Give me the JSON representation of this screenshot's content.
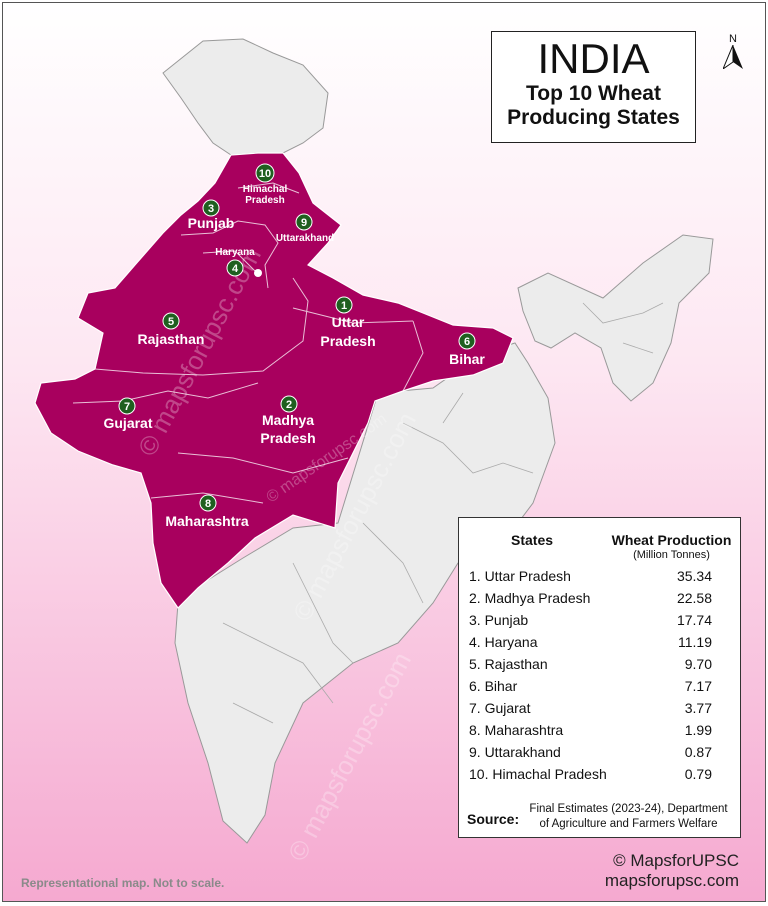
{
  "title": "INDIA",
  "subtitle_line1": "Top 10 Wheat",
  "subtitle_line2": "Producing States",
  "north_label": "N",
  "legend": {
    "header_states": "States",
    "header_production": "Wheat Production",
    "header_unit": "(Million Tonnes)",
    "rows": [
      {
        "label": "1. Uttar Pradesh",
        "value": "35.34"
      },
      {
        "label": "2. Madhya Pradesh",
        "value": "22.58"
      },
      {
        "label": "3. Punjab",
        "value": "17.74"
      },
      {
        "label": "4. Haryana",
        "value": "11.19"
      },
      {
        "label": "5. Rajasthan",
        "value": "9.70"
      },
      {
        "label": "6. Bihar",
        "value": "7.17"
      },
      {
        "label": "7. Gujarat",
        "value": "3.77"
      },
      {
        "label": "8. Maharashtra",
        "value": "1.99"
      },
      {
        "label": "9. Uttarakhand",
        "value": "0.87"
      },
      {
        "label": "10. Himachal Pradesh",
        "value": "0.79"
      }
    ],
    "source_label": "Source:",
    "source_line1": "Final Estimates (2023-24), Department",
    "source_line2": "of Agriculture and Farmers Welfare"
  },
  "map_labels": {
    "uttar_pradesh_1": "Uttar",
    "uttar_pradesh_2": "Pradesh",
    "madhya_pradesh_1": "Madhya",
    "madhya_pradesh_2": "Pradesh",
    "punjab": "Punjab",
    "haryana": "Haryana",
    "rajasthan": "Rajasthan",
    "bihar": "Bihar",
    "gujarat": "Gujarat",
    "maharashtra": "Maharashtra",
    "uttarakhand": "Uttarakhand",
    "himachal_1": "Himachal",
    "himachal_2": "Pradesh"
  },
  "markers": [
    "1",
    "2",
    "3",
    "4",
    "5",
    "6",
    "7",
    "8",
    "9",
    "10"
  ],
  "watermark": "© mapsforupsc.com",
  "footer_note": "Representational map. Not to scale.",
  "copyright_line1": "© MapsforUPSC",
  "copyright_line2": "mapsforupsc.com",
  "colors": {
    "highlight": "#a8005e",
    "other_states": "#ececec",
    "marker": "#1f5f1f"
  }
}
